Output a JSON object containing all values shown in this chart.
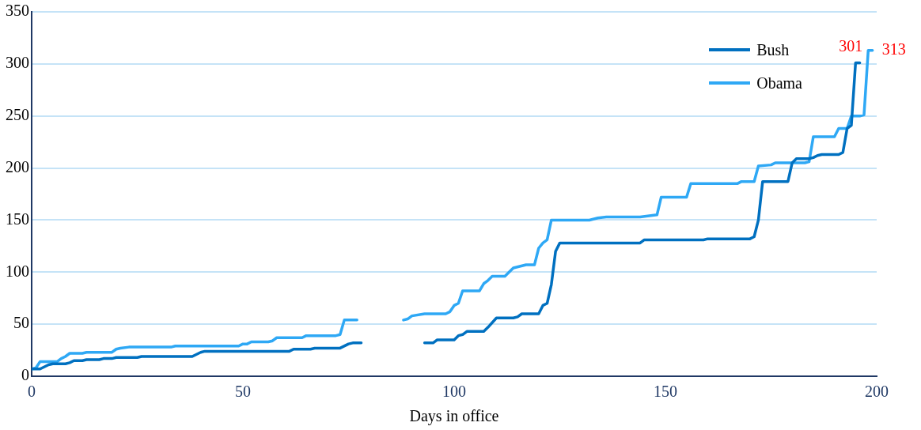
{
  "chart_data": {
    "type": "line",
    "xlabel": "Days in office",
    "xlim": [
      0,
      200
    ],
    "xticks": [
      0,
      50,
      100,
      150,
      200
    ],
    "ylim": [
      0,
      350
    ],
    "yticks": [
      0,
      50,
      100,
      150,
      200,
      250,
      300,
      350
    ],
    "grid": "y",
    "legend": "top right",
    "marker": "none",
    "line_style": "solid",
    "series": [
      {
        "name": "Bush",
        "color": "#0070c0",
        "x": [
          0,
          2,
          4,
          5,
          8,
          9,
          10,
          12,
          13,
          16,
          17,
          19,
          20,
          25,
          26,
          38,
          40,
          41,
          61,
          62,
          66,
          67,
          73,
          75,
          76,
          78,
          85,
          93,
          95,
          96,
          100,
          101,
          102,
          103,
          107,
          108,
          110,
          114,
          115,
          116,
          120,
          121,
          122,
          123,
          124,
          125,
          144,
          145,
          159,
          160,
          170,
          171,
          172,
          173,
          179,
          180,
          181,
          184,
          185,
          186,
          187,
          191,
          192,
          193,
          194,
          195,
          196
        ],
        "values": [
          7,
          7,
          11,
          12,
          12,
          13,
          15,
          15,
          16,
          16,
          17,
          17,
          18,
          18,
          19,
          19,
          23,
          24,
          24,
          26,
          26,
          27,
          27,
          31,
          32,
          32,
          null,
          32,
          32,
          35,
          35,
          39,
          40,
          43,
          43,
          47,
          56,
          56,
          57,
          60,
          60,
          68,
          70,
          88,
          120,
          128,
          128,
          131,
          131,
          132,
          132,
          134,
          150,
          187,
          187,
          205,
          209,
          209,
          210,
          212,
          213,
          213,
          215,
          238,
          241,
          301,
          301
        ]
      },
      {
        "name": "Obama",
        "color": "#2ea8f5",
        "x": [
          0,
          1,
          2,
          6,
          7,
          8,
          9,
          12,
          13,
          19,
          20,
          21,
          23,
          33,
          34,
          49,
          50,
          51,
          52,
          56,
          57,
          58,
          64,
          65,
          72,
          73,
          74,
          77,
          82,
          88,
          89,
          90,
          93,
          98,
          99,
          100,
          101,
          102,
          106,
          107,
          108,
          109,
          112,
          113,
          114,
          117,
          119,
          120,
          121,
          122,
          123,
          132,
          134,
          136,
          144,
          148,
          149,
          155,
          156,
          167,
          168,
          171,
          172,
          175,
          176,
          183,
          184,
          185,
          190,
          191,
          193,
          194,
          196,
          197,
          198,
          199
        ],
        "values": [
          7,
          8,
          14,
          14,
          17,
          19,
          22,
          22,
          23,
          23,
          26,
          27,
          28,
          28,
          29,
          29,
          31,
          31,
          33,
          33,
          34,
          37,
          37,
          39,
          39,
          40,
          54,
          54,
          null,
          54,
          55,
          58,
          60,
          60,
          62,
          68,
          70,
          82,
          82,
          89,
          92,
          96,
          96,
          100,
          104,
          107,
          107,
          123,
          128,
          131,
          150,
          150,
          152,
          153,
          153,
          155,
          172,
          172,
          185,
          185,
          187,
          187,
          202,
          203,
          205,
          205,
          206,
          230,
          230,
          238,
          238,
          250,
          250,
          251,
          313,
          313
        ]
      }
    ],
    "annotations": [
      {
        "text": "301",
        "x": 195,
        "y": 301
      },
      {
        "text": "313",
        "x": 199,
        "y": 313
      }
    ]
  }
}
